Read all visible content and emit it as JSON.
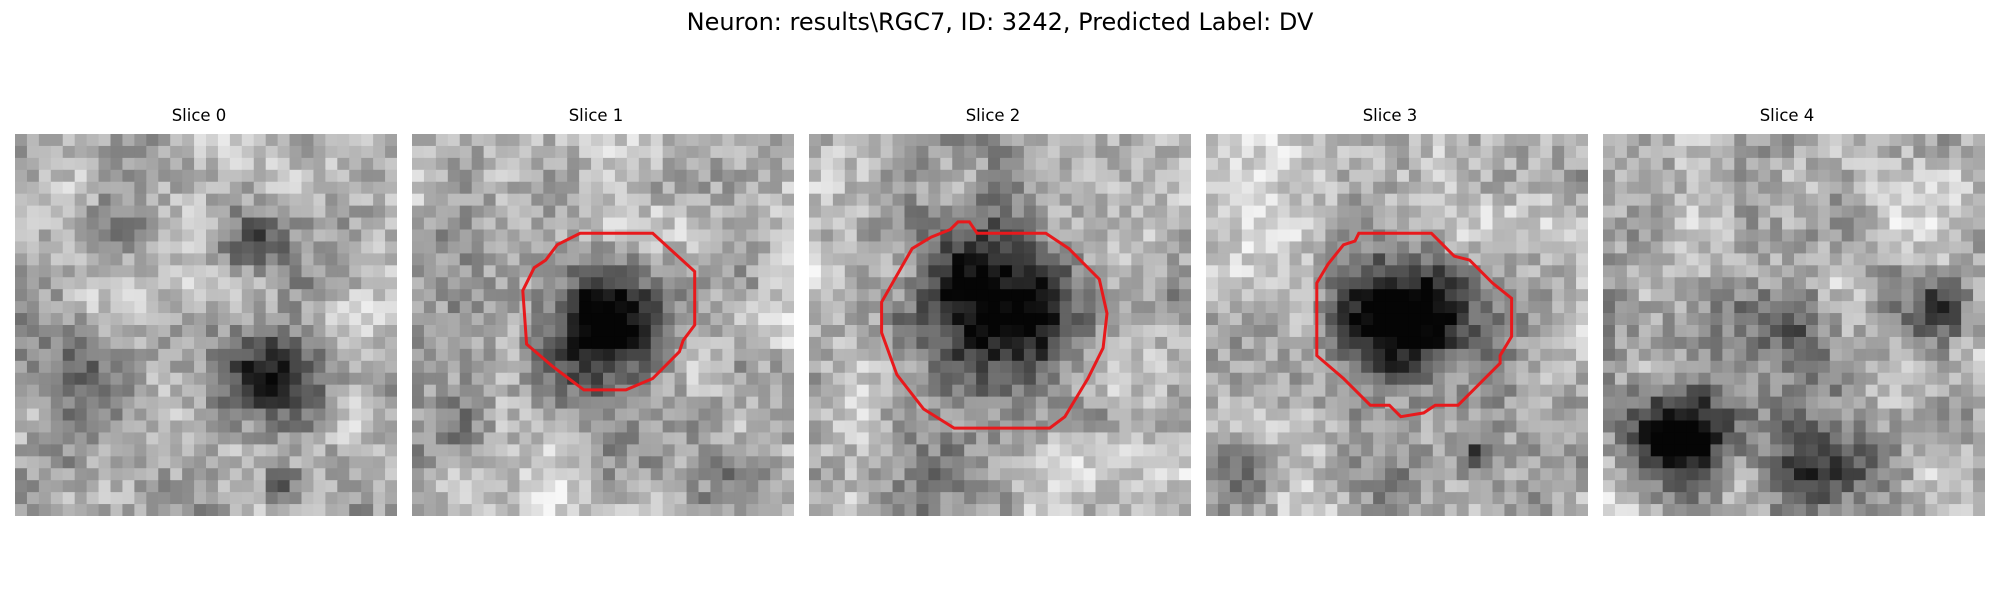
{
  "figure": {
    "title": "Neuron: results\\RGC7, ID: 3242, Predicted Label: DV"
  },
  "panels": [
    {
      "title": "Slice 0",
      "seed": 11,
      "blobs": [
        [
          0.68,
          0.62,
          0.18,
          0.6
        ],
        [
          0.2,
          0.62,
          0.14,
          0.35
        ],
        [
          0.62,
          0.3,
          0.12,
          0.35
        ],
        [
          0.3,
          0.28,
          0.12,
          0.2
        ],
        [
          0.7,
          0.92,
          0.06,
          0.5
        ]
      ],
      "contour": []
    },
    {
      "title": "Slice 1",
      "seed": 23,
      "blobs": [
        [
          0.5,
          0.5,
          0.2,
          0.85
        ],
        [
          0.85,
          0.92,
          0.12,
          0.25
        ],
        [
          0.12,
          0.8,
          0.1,
          0.2
        ]
      ],
      "contour": [
        [
          0.44,
          0.26
        ],
        [
          0.63,
          0.26
        ],
        [
          0.74,
          0.36
        ],
        [
          0.74,
          0.5
        ],
        [
          0.71,
          0.54
        ],
        [
          0.7,
          0.57
        ],
        [
          0.63,
          0.64
        ],
        [
          0.56,
          0.67
        ],
        [
          0.45,
          0.67
        ],
        [
          0.37,
          0.61
        ],
        [
          0.3,
          0.55
        ],
        [
          0.29,
          0.41
        ],
        [
          0.32,
          0.35
        ],
        [
          0.35,
          0.33
        ],
        [
          0.38,
          0.29
        ]
      ],
      "contour_color": "#e8191c"
    },
    {
      "title": "Slice 2",
      "seed": 37,
      "blobs": [
        [
          0.48,
          0.45,
          0.26,
          0.8
        ],
        [
          0.3,
          0.92,
          0.15,
          0.25
        ],
        [
          0.95,
          0.4,
          0.08,
          0.25
        ]
      ],
      "contour": [
        [
          0.23,
          0.37
        ],
        [
          0.27,
          0.3
        ],
        [
          0.32,
          0.27
        ],
        [
          0.37,
          0.25
        ],
        [
          0.39,
          0.23
        ],
        [
          0.42,
          0.23
        ],
        [
          0.44,
          0.26
        ],
        [
          0.62,
          0.26
        ],
        [
          0.68,
          0.3
        ],
        [
          0.76,
          0.38
        ],
        [
          0.78,
          0.47
        ],
        [
          0.77,
          0.56
        ],
        [
          0.73,
          0.64
        ],
        [
          0.67,
          0.74
        ],
        [
          0.63,
          0.77
        ],
        [
          0.56,
          0.77
        ],
        [
          0.38,
          0.77
        ],
        [
          0.3,
          0.72
        ],
        [
          0.23,
          0.63
        ],
        [
          0.19,
          0.52
        ],
        [
          0.19,
          0.44
        ]
      ],
      "contour_color": "#e8191c"
    },
    {
      "title": "Slice 3",
      "seed": 51,
      "blobs": [
        [
          0.52,
          0.48,
          0.21,
          0.95
        ],
        [
          0.7,
          0.85,
          0.05,
          0.5
        ],
        [
          0.5,
          0.95,
          0.18,
          0.25
        ],
        [
          0.05,
          0.9,
          0.1,
          0.2
        ]
      ],
      "contour": [
        [
          0.32,
          0.34
        ],
        [
          0.36,
          0.29
        ],
        [
          0.39,
          0.28
        ],
        [
          0.4,
          0.26
        ],
        [
          0.59,
          0.26
        ],
        [
          0.65,
          0.32
        ],
        [
          0.69,
          0.33
        ],
        [
          0.75,
          0.39
        ],
        [
          0.8,
          0.43
        ],
        [
          0.8,
          0.53
        ],
        [
          0.77,
          0.58
        ],
        [
          0.77,
          0.6
        ],
        [
          0.7,
          0.67
        ],
        [
          0.66,
          0.71
        ],
        [
          0.6,
          0.71
        ],
        [
          0.57,
          0.73
        ],
        [
          0.51,
          0.74
        ],
        [
          0.48,
          0.71
        ],
        [
          0.43,
          0.71
        ],
        [
          0.36,
          0.64
        ],
        [
          0.29,
          0.58
        ],
        [
          0.29,
          0.39
        ]
      ],
      "contour_color": "#e8191c"
    },
    {
      "title": "Slice 4",
      "seed": 67,
      "blobs": [
        [
          0.2,
          0.8,
          0.16,
          0.75
        ],
        [
          0.55,
          0.85,
          0.2,
          0.4
        ],
        [
          0.88,
          0.45,
          0.1,
          0.45
        ],
        [
          0.5,
          0.5,
          0.14,
          0.3
        ],
        [
          0.35,
          0.45,
          0.12,
          0.2
        ]
      ],
      "contour": []
    }
  ]
}
